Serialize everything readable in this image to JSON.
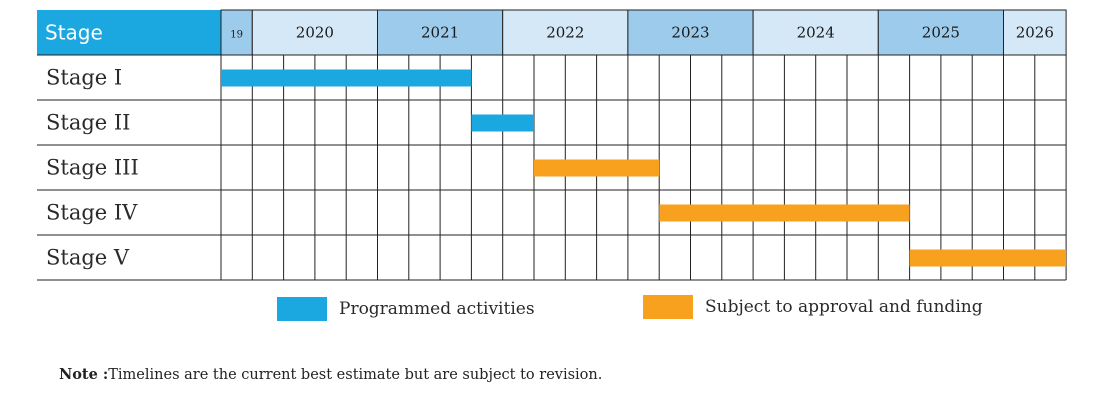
{
  "colors": {
    "header_blue": "#1ba7df",
    "year_light": "#d4e8f7",
    "year_mid": "#9dcbec",
    "programmed": "#1ba7df",
    "subject": "#f7a11f",
    "grid": "#222222"
  },
  "chart_data": {
    "type": "gantt",
    "header_label": "Stage",
    "time_unit": "quarter",
    "timeline_start": "2019 Q4",
    "timeline_end": "2026 Q2",
    "years": [
      {
        "label": "19",
        "year": 2019,
        "quarters": 1
      },
      {
        "label": "2020",
        "year": 2020,
        "quarters": 4
      },
      {
        "label": "2021",
        "year": 2021,
        "quarters": 4
      },
      {
        "label": "2022",
        "year": 2022,
        "quarters": 4
      },
      {
        "label": "2023",
        "year": 2023,
        "quarters": 4
      },
      {
        "label": "2024",
        "year": 2024,
        "quarters": 4
      },
      {
        "label": "2025",
        "year": 2025,
        "quarters": 4
      },
      {
        "label": "2026",
        "year": 2026,
        "quarters": 2
      }
    ],
    "tasks": [
      {
        "name": "Stage I",
        "start_quarter": 0,
        "end_quarter": 8,
        "category": "programmed"
      },
      {
        "name": "Stage II",
        "start_quarter": 8,
        "end_quarter": 10,
        "category": "programmed"
      },
      {
        "name": "Stage III",
        "start_quarter": 10,
        "end_quarter": 14,
        "category": "subject"
      },
      {
        "name": "Stage IV",
        "start_quarter": 14,
        "end_quarter": 22,
        "category": "subject"
      },
      {
        "name": "Stage V",
        "start_quarter": 22,
        "end_quarter": 27,
        "category": "subject"
      }
    ],
    "legend": [
      {
        "key": "programmed",
        "label": "Programmed activities"
      },
      {
        "key": "subject",
        "label": "Subject to approval and funding"
      }
    ]
  },
  "note": {
    "label": "Note :",
    "text": "Timelines are the current best estimate but are subject to revision."
  }
}
